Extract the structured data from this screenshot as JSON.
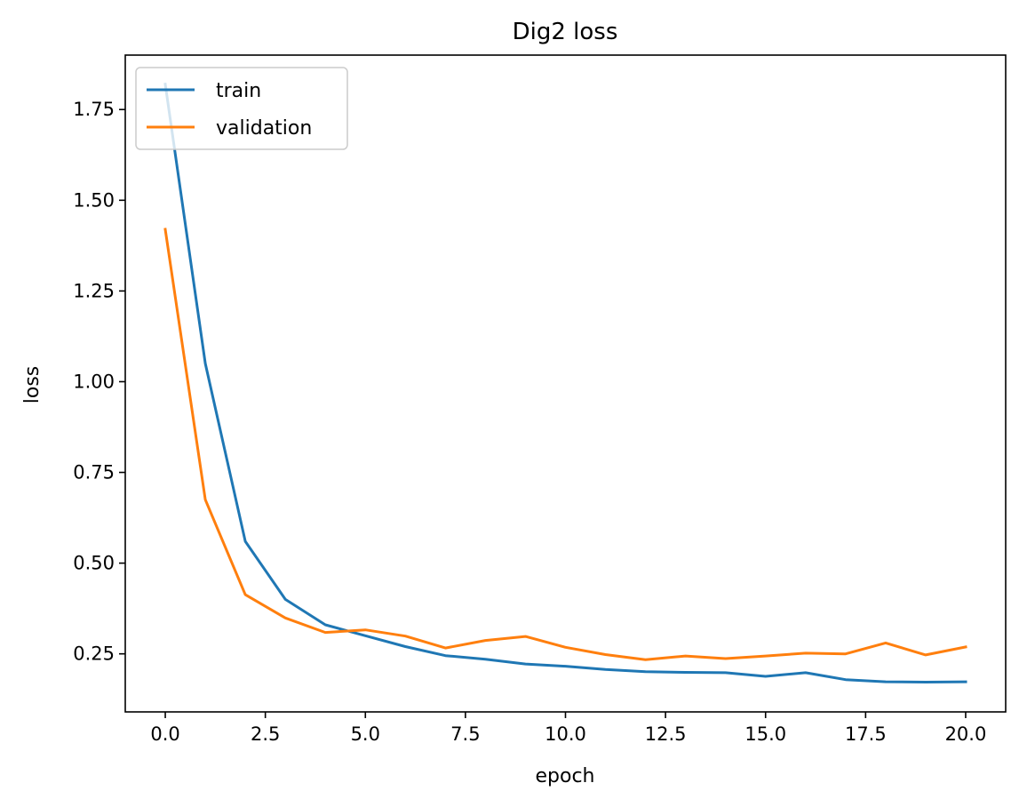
{
  "chart_data": {
    "type": "line",
    "title": "Dig2 loss",
    "xlabel": "epoch",
    "ylabel": "loss",
    "xlim": [
      -1.0,
      21.0
    ],
    "ylim": [
      0.09,
      1.9
    ],
    "xticks": [
      0.0,
      2.5,
      5.0,
      7.5,
      10.0,
      12.5,
      15.0,
      17.5,
      20.0
    ],
    "xtick_labels": [
      "0.0",
      "2.5",
      "5.0",
      "7.5",
      "10.0",
      "12.5",
      "15.0",
      "17.5",
      "20.0"
    ],
    "yticks": [
      0.25,
      0.5,
      0.75,
      1.0,
      1.25,
      1.5,
      1.75
    ],
    "ytick_labels": [
      "0.25",
      "0.50",
      "0.75",
      "1.00",
      "1.25",
      "1.50",
      "1.75"
    ],
    "grid": false,
    "legend_position": "top-left",
    "x": [
      0,
      1,
      2,
      3,
      4,
      5,
      6,
      7,
      8,
      9,
      10,
      11,
      12,
      13,
      14,
      15,
      16,
      17,
      18,
      19,
      20
    ],
    "series": [
      {
        "name": "train",
        "color": "#1f77b4",
        "values": [
          1.82,
          1.05,
          0.56,
          0.4,
          0.33,
          0.3,
          0.27,
          0.245,
          0.235,
          0.222,
          0.216,
          0.207,
          0.201,
          0.199,
          0.198,
          0.188,
          0.198,
          0.179,
          0.173,
          0.172,
          0.173
        ]
      },
      {
        "name": "validation",
        "color": "#ff7f0e",
        "values": [
          1.42,
          0.675,
          0.413,
          0.349,
          0.309,
          0.316,
          0.299,
          0.266,
          0.287,
          0.298,
          0.268,
          0.248,
          0.234,
          0.244,
          0.237,
          0.244,
          0.252,
          0.25,
          0.28,
          0.247,
          0.269
        ]
      }
    ]
  }
}
